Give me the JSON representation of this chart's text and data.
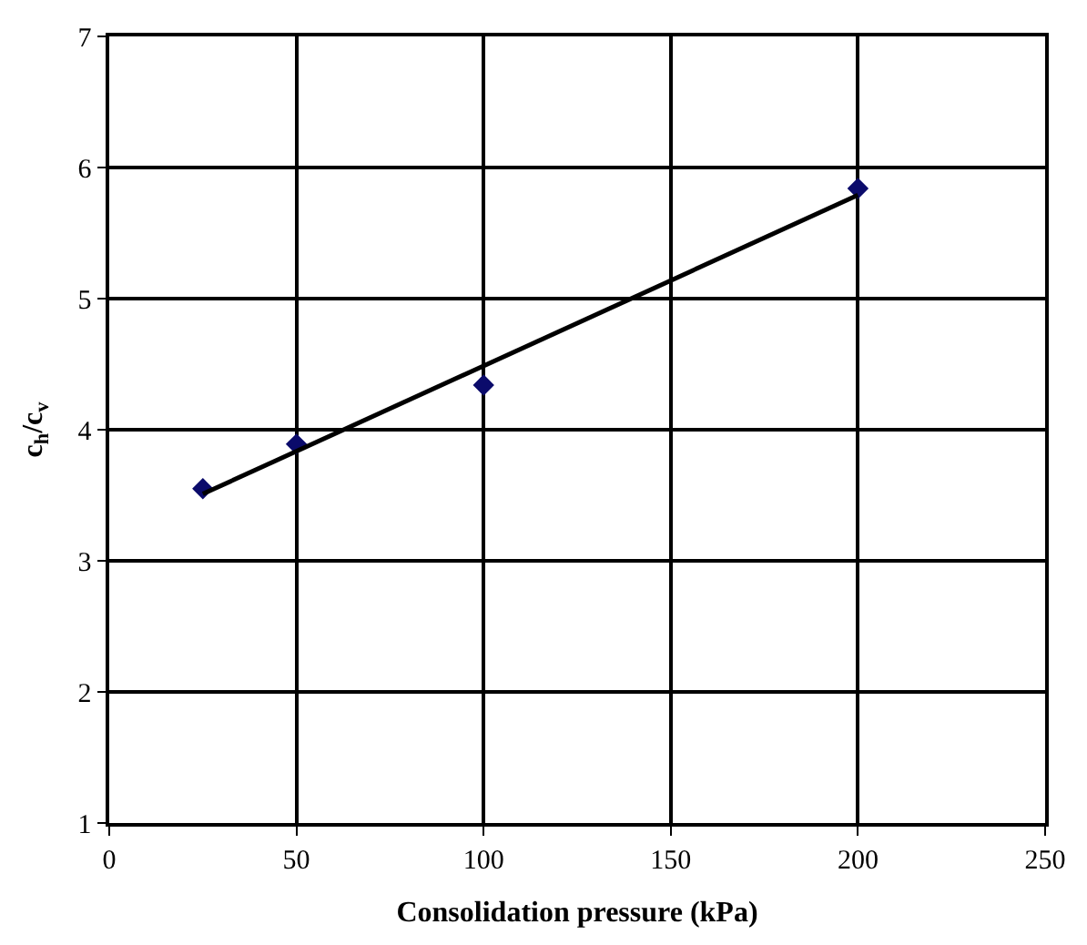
{
  "chart_data": {
    "type": "scatter",
    "xlabel": "Consolidation pressure (kPa)",
    "ylabel": "c$_{h}$/c$_{v}$",
    "series": [
      {
        "x": [
          25,
          50,
          100,
          200
        ],
        "values": [
          3.55,
          3.89,
          4.34,
          5.84
        ],
        "color": "#0b0b6b",
        "marker": "diamond"
      },
      {
        "type": "line",
        "x": [
          25,
          200
        ],
        "values": [
          3.51,
          5.79
        ],
        "color": "#000000",
        "marker": "none",
        "line_style": "solid"
      }
    ],
    "xlim": [
      0,
      250
    ],
    "xticks": [
      0,
      50,
      100,
      150,
      200,
      250
    ],
    "ylim": [
      1,
      7
    ],
    "yticks": [
      1,
      2,
      3,
      4,
      5,
      6,
      7
    ],
    "grid": true
  }
}
